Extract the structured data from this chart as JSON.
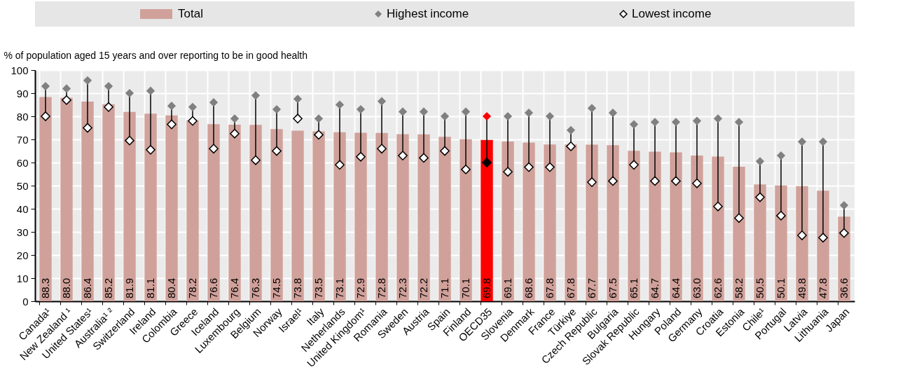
{
  "chart_data": {
    "type": "bar",
    "ylabel": "% of population aged 15 years and over reporting to be in good health",
    "categories": [
      "Canada¹",
      "New Zealand ¹",
      "United States¹",
      "Australia¹ ²",
      "Switzerland",
      "Ireland",
      "Colombia",
      "Greece",
      "Iceland",
      "Luxembourg",
      "Belgium",
      "Norway",
      "Israel¹",
      "Italy",
      "Netherlands",
      "United Kingdom¹",
      "Romania",
      "Sweden",
      "Austria",
      "Spain",
      "Finland",
      "OECD35",
      "Slovenia",
      "Denmark",
      "France",
      "Türkiye",
      "Czech Republic",
      "Bulgaria",
      "Slovak Republic",
      "Hungary",
      "Poland",
      "Germany",
      "Croatia",
      "Estonia",
      "Chile¹",
      "Portugal",
      "Latvia",
      "Lithuania",
      "Japan"
    ],
    "series": [
      {
        "name": "Total",
        "color": "#d0a19a",
        "value_labels": [
          "88.3",
          "88.0",
          "86.4",
          "85.2",
          "81.9",
          "81.1",
          "80.4",
          "78.2",
          "76.6",
          "76.4",
          "76.3",
          "74.5",
          "73.8",
          "73.5",
          "73.1",
          "72.9",
          "72.8",
          "72.3",
          "72.2",
          "71.1",
          "70.1",
          "69.8",
          "69.1",
          "68.6",
          "67.8",
          "67.8",
          "67.7",
          "67.5",
          "65.1",
          "64.7",
          "64.4",
          "63.0",
          "62.6",
          "58.2",
          "50.5",
          "50.1",
          "49.8",
          "47.8",
          "36.6"
        ],
        "colors": [
          "#d0a19a",
          "#d0a19a",
          "#d0a19a",
          "#d0a19a",
          "#d0a19a",
          "#d0a19a",
          "#d0a19a",
          "#d0a19a",
          "#d0a19a",
          "#d0a19a",
          "#d0a19a",
          "#d0a19a",
          "#d0a19a",
          "#d0a19a",
          "#d0a19a",
          "#d0a19a",
          "#d0a19a",
          "#d0a19a",
          "#d0a19a",
          "#d0a19a",
          "#d0a19a",
          "#ff0000",
          "#d0a19a",
          "#d0a19a",
          "#d0a19a",
          "#d0a19a",
          "#d0a19a",
          "#d0a19a",
          "#d0a19a",
          "#d0a19a",
          "#d0a19a",
          "#d0a19a",
          "#d0a19a",
          "#d0a19a",
          "#d0a19a",
          "#d0a19a",
          "#d0a19a",
          "#d0a19a",
          "#d0a19a"
        ],
        "values": [
          88.3,
          88.0,
          86.4,
          85.2,
          81.9,
          81.1,
          80.4,
          78.2,
          76.6,
          76.4,
          76.3,
          74.5,
          73.8,
          73.5,
          73.1,
          72.9,
          72.8,
          72.3,
          72.2,
          71.1,
          70.1,
          69.8,
          69.1,
          68.6,
          67.8,
          67.8,
          67.7,
          67.5,
          65.1,
          64.7,
          64.4,
          63.0,
          62.6,
          58.2,
          50.5,
          50.1,
          49.8,
          47.8,
          36.6
        ]
      },
      {
        "name": "Highest income",
        "type": "scatter",
        "marker": "diamond",
        "color": "#808080",
        "colors": [
          "#808080",
          "#808080",
          "#808080",
          "#808080",
          "#808080",
          "#808080",
          "#808080",
          "#808080",
          "#808080",
          "#808080",
          "#808080",
          "#808080",
          "#808080",
          "#808080",
          "#808080",
          "#808080",
          "#808080",
          "#808080",
          "#808080",
          "#808080",
          "#808080",
          "#ff0000",
          "#808080",
          "#808080",
          "#808080",
          "#808080",
          "#808080",
          "#808080",
          "#808080",
          "#808080",
          "#808080",
          "#808080",
          "#808080",
          "#808080",
          "#808080",
          "#808080",
          "#808080",
          "#808080",
          "#808080"
        ],
        "values": [
          93,
          92,
          95.5,
          93,
          90,
          91,
          84.5,
          84,
          86,
          79,
          89,
          83,
          87.5,
          79,
          85,
          83,
          86.5,
          82,
          82,
          80,
          82,
          80,
          80,
          81.5,
          80,
          74,
          83.5,
          81.5,
          76.5,
          77.5,
          77.5,
          78,
          79,
          77.5,
          60.5,
          63,
          69,
          69,
          41.5
        ]
      },
      {
        "name": "Lowest income",
        "type": "scatter",
        "marker": "diamond",
        "color": "#ffffff",
        "colors": [
          "#ffffff",
          "#ffffff",
          "#ffffff",
          "#ffffff",
          "#ffffff",
          "#ffffff",
          "#ffffff",
          "#ffffff",
          "#ffffff",
          "#ffffff",
          "#ffffff",
          "#ffffff",
          "#ffffff",
          "#ffffff",
          "#ffffff",
          "#ffffff",
          "#ffffff",
          "#ffffff",
          "#ffffff",
          "#ffffff",
          "#ffffff",
          "#000000",
          "#ffffff",
          "#ffffff",
          "#ffffff",
          "#ffffff",
          "#ffffff",
          "#ffffff",
          "#ffffff",
          "#ffffff",
          "#ffffff",
          "#ffffff",
          "#ffffff",
          "#ffffff",
          "#ffffff",
          "#ffffff",
          "#ffffff",
          "#ffffff",
          "#ffffff"
        ],
        "values": [
          80,
          87,
          75,
          84,
          69.5,
          65.5,
          76.5,
          78,
          66,
          72.5,
          61,
          65,
          79,
          72,
          59,
          62.5,
          66,
          63,
          62,
          65,
          57,
          60,
          56,
          58,
          58,
          67,
          51.5,
          52,
          59,
          52,
          52,
          51,
          41,
          36,
          45,
          37,
          28.5,
          27.5,
          29.5
        ]
      }
    ],
    "ylim": [
      0,
      100
    ],
    "yticks": [
      0,
      10,
      20,
      30,
      40,
      50,
      60,
      70,
      80,
      90,
      100
    ],
    "grid": true,
    "legend": "top"
  }
}
